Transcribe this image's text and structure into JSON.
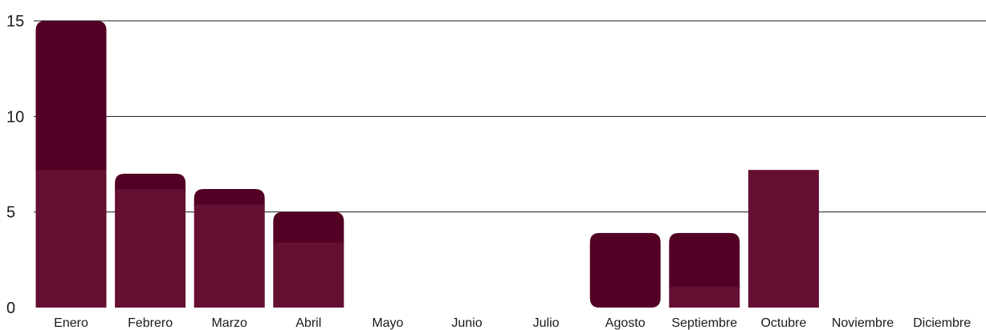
{
  "chart_data": {
    "type": "bar",
    "stacked": true,
    "categories": [
      "Enero",
      "Febrero",
      "Marzo",
      "Abril",
      "Mayo",
      "Junio",
      "Julio",
      "Agosto",
      "Septiembre",
      "Octubre",
      "Noviembre",
      "Diciembre"
    ],
    "series": [
      {
        "values": [
          7.2,
          6.2,
          5.4,
          3.4,
          0,
          0,
          0,
          0,
          1.1,
          7.2,
          0,
          0
        ]
      },
      {
        "values": [
          7.8,
          0.8,
          0.8,
          1.6,
          0,
          0,
          0,
          3.9,
          2.8,
          0,
          0,
          0
        ]
      }
    ],
    "title": "",
    "xlabel": "",
    "ylabel": "",
    "ylim": [
      0,
      15
    ],
    "yticks": [
      0,
      5,
      10,
      15
    ],
    "grid": true,
    "colors": {
      "bottom": "#650f33",
      "top": "#520024"
    }
  }
}
